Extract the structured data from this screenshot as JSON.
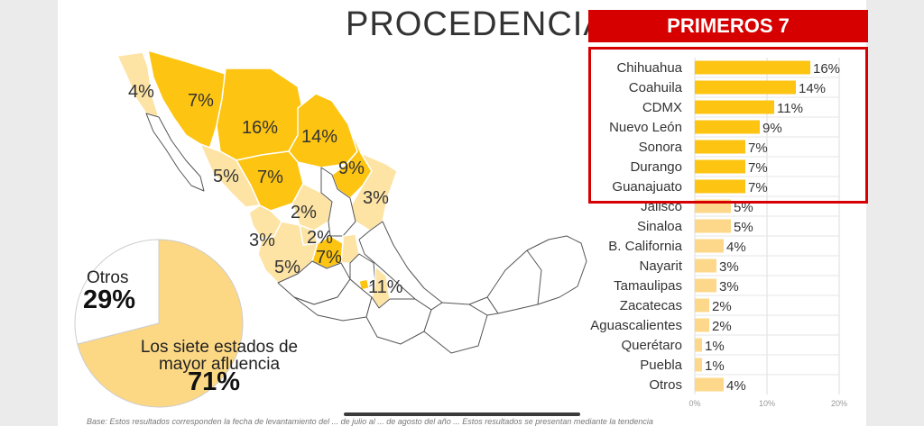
{
  "header": {
    "title": "PROCEDENCIA",
    "badge": "PRIMEROS 7"
  },
  "colors": {
    "top7": "#fdc412",
    "rest": "#fdd88a",
    "highlight": "#d60000",
    "pie_main": "#fdd884"
  },
  "chart_data": [
    {
      "type": "bar",
      "orientation": "horizontal",
      "categories": [
        "Chihuahua",
        "Coahuila",
        "CDMX",
        "Nuevo León",
        "Sonora",
        "Durango",
        "Guanajuato",
        "Jalisco",
        "Sinaloa",
        "B. California",
        "Nayarit",
        "Tamaulipas",
        "Zacatecas",
        "Aguascalientes",
        "Querétaro",
        "Puebla",
        "Otros"
      ],
      "values": [
        16,
        14,
        11,
        9,
        7,
        7,
        7,
        5,
        5,
        4,
        3,
        3,
        2,
        2,
        1,
        1,
        4
      ],
      "value_labels": [
        "16%",
        "14%",
        "11%",
        "9%",
        "7%",
        "7%",
        "7%",
        "5%",
        "5%",
        "4%",
        "3%",
        "3%",
        "2%",
        "2%",
        "1%",
        "1%",
        "4%"
      ],
      "highlighted_count": 7,
      "xlim": [
        0,
        20
      ],
      "ticks": [
        "0%",
        "10%",
        "20%"
      ],
      "grid": true
    },
    {
      "type": "pie",
      "slices": [
        {
          "label": "Otros",
          "value": 29,
          "value_label": "29%"
        },
        {
          "label": "Los siete estados de mayor afluencia",
          "value": 71,
          "value_label": "71%"
        }
      ]
    }
  ],
  "map": {
    "labels": [
      "4%",
      "7%",
      "16%",
      "14%",
      "5%",
      "7%",
      "9%",
      "3%",
      "2%",
      "3%",
      "2%",
      "5%",
      "7%",
      "11%"
    ]
  },
  "footnote": "Base: Estos resultados corresponden la fecha de levantamiento del ... de julio al ... de agosto del año ... Estos resultados se presentan mediante la tendencia"
}
